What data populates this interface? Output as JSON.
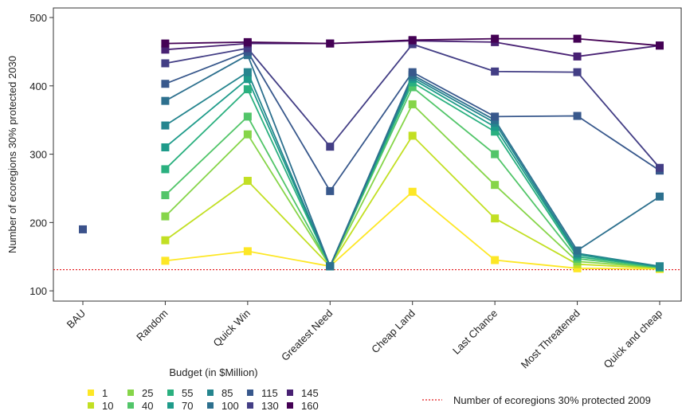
{
  "chart_data": {
    "type": "line",
    "y_label": "Number of ecoregions 30% protected 2030",
    "categories": [
      "BAU",
      "Random",
      "Quick Win",
      "Greatest Need",
      "Cheap Land",
      "Last Chance",
      "Most Threatened",
      "Quick and cheap"
    ],
    "ylim": [
      85,
      514
    ],
    "yticks": [
      100,
      200,
      300,
      400,
      500
    ],
    "legend_title": "Budget (in $Million)",
    "series": [
      {
        "name": "1",
        "color": "#fde725",
        "values": [
          null,
          144,
          158,
          136,
          245,
          145,
          133,
          132
        ]
      },
      {
        "name": "10",
        "color": "#c2df23",
        "values": [
          null,
          174,
          261,
          136,
          327,
          206,
          139,
          133
        ]
      },
      {
        "name": "25",
        "color": "#86d549",
        "values": [
          null,
          209,
          329,
          136,
          373,
          255,
          143,
          134
        ]
      },
      {
        "name": "40",
        "color": "#52c569",
        "values": [
          null,
          240,
          355,
          136,
          398,
          300,
          147,
          134
        ]
      },
      {
        "name": "55",
        "color": "#2ab07f",
        "values": [
          null,
          278,
          395,
          136,
          405,
          333,
          150,
          135
        ]
      },
      {
        "name": "70",
        "color": "#1e9b8a",
        "values": [
          null,
          310,
          410,
          136,
          410,
          340,
          153,
          135
        ]
      },
      {
        "name": "85",
        "color": "#25858e",
        "values": [
          null,
          342,
          420,
          136,
          413,
          346,
          155,
          136
        ]
      },
      {
        "name": "100",
        "color": "#2d708e",
        "values": [
          null,
          378,
          445,
          136,
          416,
          350,
          159,
          238
        ]
      },
      {
        "name": "115",
        "color": "#38588c",
        "values": [
          null,
          403,
          450,
          246,
          420,
          355,
          356,
          276
        ]
      },
      {
        "name": "130",
        "color": "#433e85",
        "values": [
          null,
          433,
          455,
          311,
          461,
          421,
          420,
          280
        ]
      },
      {
        "name": "145",
        "color": "#482173",
        "values": [
          null,
          453,
          462,
          462,
          466,
          464,
          443,
          459
        ]
      },
      {
        "name": "160",
        "color": "#440154",
        "values": [
          null,
          462,
          464,
          462,
          467,
          469,
          469,
          459
        ]
      }
    ],
    "extra_points": [
      {
        "x": "BAU",
        "value": 190,
        "color": "#3b528b"
      }
    ],
    "reference_line": {
      "value": 131,
      "label": "Number of ecoregions 30% protected 2009",
      "color": "#e41a1c"
    }
  }
}
